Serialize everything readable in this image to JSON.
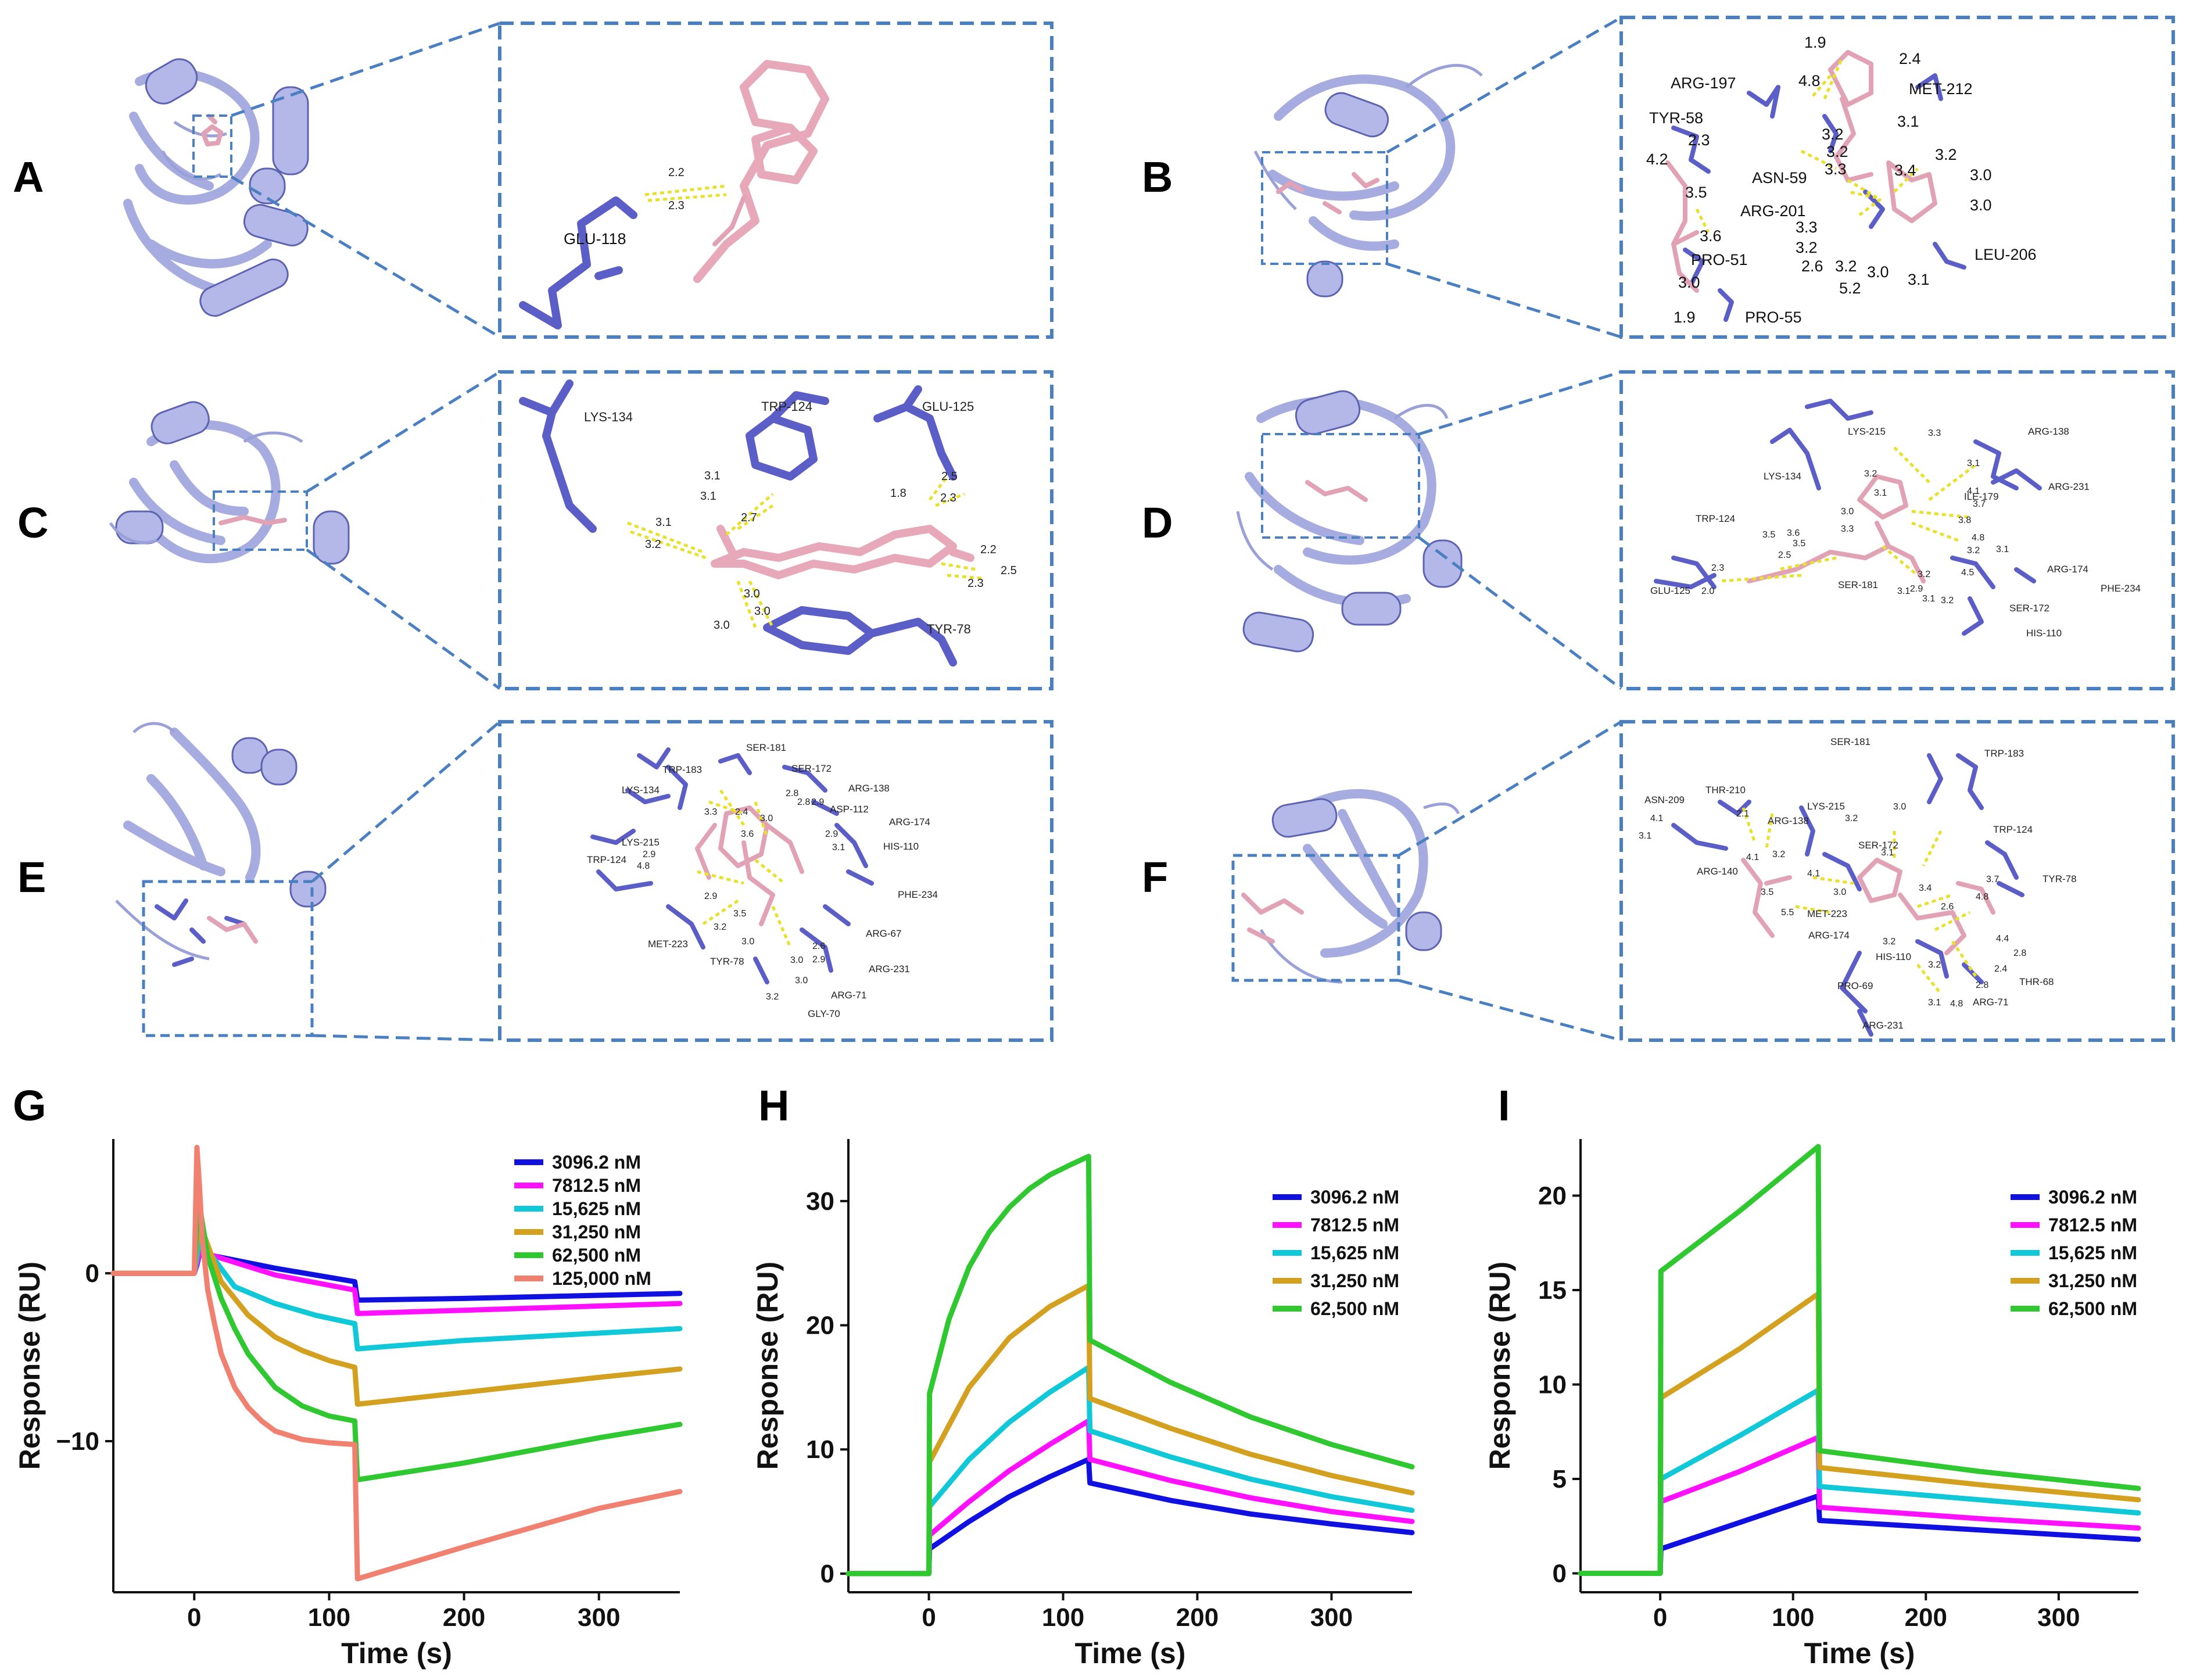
{
  "panels": [
    {
      "letter": "A",
      "residues": [
        "GLU-118"
      ],
      "distances": [
        "2.2",
        "2.3"
      ]
    },
    {
      "letter": "B",
      "residues": [
        "ARG-197",
        "MET-212",
        "TYR-58",
        "ASN-59",
        "ARG-201",
        "LEU-206",
        "PRO-51",
        "PRO-55"
      ],
      "distances": [
        "1.9",
        "2.4",
        "4.8",
        "3.2",
        "3.1",
        "4.2",
        "2.3",
        "3.2",
        "3.3",
        "3.4",
        "3.2",
        "3.0",
        "3.5",
        "3.0",
        "3.3",
        "3.6",
        "3.2",
        "2.6",
        "3.2",
        "3.0",
        "3.1",
        "5.2",
        "3.0",
        "1.9"
      ]
    },
    {
      "letter": "C",
      "residues": [
        "LYS-134",
        "TRP-124",
        "GLU-125",
        "TYR-78"
      ],
      "distances": [
        "3.1",
        "3.1",
        "2.7",
        "1.8",
        "2.5",
        "2.3",
        "3.1",
        "3.2",
        "2.2",
        "2.5",
        "2.3",
        "3.0",
        "3.0",
        "3.0"
      ]
    },
    {
      "letter": "D",
      "residues": [
        "LYS-215",
        "ARG-138",
        "LYS-134",
        "ILE-179",
        "ARG-231",
        "TRP-124",
        "GLU-125",
        "SER-181",
        "ARG-174",
        "PHE-234",
        "SER-172",
        "HIS-110"
      ],
      "distances": [
        "3.3",
        "3.1",
        "3.2",
        "3.1",
        "4.1",
        "3.7",
        "3.0",
        "3.3",
        "3.5",
        "3.6",
        "3.8",
        "2.5",
        "4.8",
        "2.3",
        "3.5",
        "3.1",
        "2.0",
        "3.2",
        "3.2",
        "4.5",
        "3.1",
        "2.9",
        "3.1",
        "3.2"
      ]
    },
    {
      "letter": "E",
      "residues": [
        "SER-181",
        "TRP-183",
        "SER-172",
        "ARG-138",
        "LYS-134",
        "ASP-112",
        "ARG-174",
        "LYS-215",
        "HIS-110",
        "TRP-124",
        "PHE-234",
        "ARG-67",
        "MET-223",
        "TYR-78",
        "ARG-231",
        "ARG-71",
        "GLY-70"
      ],
      "distances": [
        "2.8",
        "2.8",
        "2.9",
        "3.3",
        "2.4",
        "3.0",
        "3.6",
        "2.9",
        "3.1",
        "2.9",
        "4.8",
        "2.9",
        "3.2",
        "3.5",
        "3.0",
        "2.6",
        "3.0",
        "2.9",
        "3.0",
        "3.2"
      ]
    },
    {
      "letter": "F",
      "residues": [
        "SER-181",
        "TRP-183",
        "ASN-209",
        "THR-210",
        "LYS-215",
        "ARG-138",
        "SER-172",
        "TRP-124",
        "ARG-140",
        "MET-223",
        "TYR-78",
        "ARG-174",
        "HIS-110",
        "PRO-69",
        "THR-68",
        "ARG-71",
        "ARG-231"
      ],
      "distances": [
        "3.2",
        "3.0",
        "4.1",
        "2.1",
        "3.1",
        "4.1",
        "3.2",
        "3.1",
        "4.1",
        "3.0",
        "3.4",
        "3.7",
        "3.5",
        "5.5",
        "2.6",
        "4.8",
        "3.2",
        "4.4",
        "2.8",
        "3.2",
        "2.4",
        "2.8",
        "3.1",
        "4.8"
      ]
    }
  ],
  "chart_data": [
    {
      "panel": "G",
      "type": "line",
      "xlabel": "Time (s)",
      "ylabel": "Response (RU)",
      "xlim": [
        -60,
        360
      ],
      "ylim": [
        -19,
        8
      ],
      "xticks": [
        0,
        100,
        200,
        300
      ],
      "yticks": [
        -10,
        0
      ],
      "legend_position": "top-right",
      "series": [
        {
          "name": "3096.2 nM",
          "color": "#1010e0",
          "x": [
            -60,
            0,
            2,
            4,
            60,
            119,
            121,
            200,
            360
          ],
          "y": [
            0,
            0,
            0.5,
            1.2,
            0.3,
            -0.5,
            -1.6,
            -1.5,
            -1.2
          ]
        },
        {
          "name": "7812.5 nM",
          "color": "#ff10ff",
          "x": [
            -60,
            0,
            2,
            4,
            60,
            119,
            121,
            200,
            360
          ],
          "y": [
            0,
            0,
            0.6,
            1.3,
            -0.1,
            -1.0,
            -2.4,
            -2.2,
            -1.8
          ]
        },
        {
          "name": "15,625 nM",
          "color": "#10c8d8",
          "x": [
            -60,
            0,
            2,
            4,
            30,
            60,
            90,
            119,
            121,
            200,
            360
          ],
          "y": [
            0,
            0,
            1.0,
            2.0,
            -0.8,
            -1.8,
            -2.5,
            -3.0,
            -4.5,
            -4.0,
            -3.3
          ]
        },
        {
          "name": "31,250 nM",
          "color": "#d4a020",
          "x": [
            -60,
            0,
            2,
            4,
            20,
            40,
            60,
            80,
            100,
            119,
            121,
            200,
            300,
            360
          ],
          "y": [
            0,
            0,
            2.0,
            3.0,
            -0.5,
            -2.5,
            -3.8,
            -4.6,
            -5.2,
            -5.6,
            -7.8,
            -7.1,
            -6.2,
            -5.7
          ]
        },
        {
          "name": "62,500 nM",
          "color": "#30c830",
          "x": [
            -60,
            0,
            2,
            4,
            10,
            20,
            30,
            40,
            60,
            80,
            100,
            119,
            121,
            200,
            300,
            360
          ],
          "y": [
            0,
            0,
            3.0,
            4.0,
            1.0,
            -1.5,
            -3.3,
            -4.8,
            -6.8,
            -7.9,
            -8.5,
            -8.8,
            -12.3,
            -11.3,
            -9.8,
            -9.0
          ]
        },
        {
          "name": "125,000 nM",
          "color": "#f08070",
          "x": [
            -60,
            0,
            2,
            4,
            6,
            10,
            15,
            20,
            30,
            40,
            50,
            60,
            80,
            100,
            119,
            121,
            200,
            300,
            360
          ],
          "y": [
            0,
            0,
            7.5,
            5.0,
            2.0,
            -1.0,
            -3.0,
            -4.8,
            -6.8,
            -8.0,
            -8.8,
            -9.4,
            -9.9,
            -10.1,
            -10.2,
            -18.2,
            -16.3,
            -14.0,
            -13.0
          ]
        }
      ]
    },
    {
      "panel": "H",
      "type": "line",
      "xlabel": "Time (s)",
      "ylabel": "Response (RU)",
      "xlim": [
        -60,
        360
      ],
      "ylim": [
        -1.5,
        35
      ],
      "xticks": [
        0,
        100,
        200,
        300
      ],
      "yticks": [
        0,
        10,
        20,
        30
      ],
      "legend_position": "right",
      "series": [
        {
          "name": "3096.2 nM",
          "color": "#1010e0",
          "x": [
            -60,
            0,
            0.5,
            30,
            60,
            90,
            119,
            120,
            180,
            240,
            300,
            360
          ],
          "y": [
            0,
            0,
            2.0,
            4.2,
            6.2,
            7.8,
            9.2,
            7.3,
            5.9,
            4.8,
            4.0,
            3.3
          ]
        },
        {
          "name": "7812.5 nM",
          "color": "#ff10ff",
          "x": [
            -60,
            0,
            0.5,
            30,
            60,
            90,
            119,
            120,
            180,
            240,
            300,
            360
          ],
          "y": [
            0,
            0,
            3.1,
            5.8,
            8.3,
            10.4,
            12.3,
            9.2,
            7.5,
            6.1,
            5.0,
            4.2
          ]
        },
        {
          "name": "15,625 nM",
          "color": "#10c8d8",
          "x": [
            -60,
            0,
            0.5,
            30,
            60,
            90,
            119,
            120,
            180,
            240,
            300,
            360
          ],
          "y": [
            0,
            0,
            5.4,
            9.2,
            12.2,
            14.6,
            16.6,
            11.5,
            9.4,
            7.6,
            6.2,
            5.1
          ]
        },
        {
          "name": "31,250 nM",
          "color": "#d4a020",
          "x": [
            -60,
            0,
            0.5,
            30,
            60,
            90,
            119,
            120,
            180,
            240,
            300,
            360
          ],
          "y": [
            0,
            0,
            9.0,
            15.0,
            19.0,
            21.5,
            23.2,
            14.1,
            11.7,
            9.6,
            7.9,
            6.5
          ]
        },
        {
          "name": "62,500 nM",
          "color": "#30c830",
          "x": [
            -60,
            0,
            0.5,
            15,
            30,
            45,
            60,
            75,
            90,
            105,
            119,
            120,
            180,
            240,
            300,
            360
          ],
          "y": [
            0,
            0,
            14.5,
            20.5,
            24.7,
            27.5,
            29.5,
            31.0,
            32.1,
            32.9,
            33.6,
            18.8,
            15.4,
            12.6,
            10.4,
            8.6
          ]
        }
      ]
    },
    {
      "panel": "I",
      "type": "line",
      "xlabel": "Time (s)",
      "ylabel": "Response (RU)",
      "xlim": [
        -60,
        360
      ],
      "ylim": [
        -1,
        23
      ],
      "xticks": [
        0,
        100,
        200,
        300
      ],
      "yticks": [
        0,
        5,
        10,
        15,
        20
      ],
      "legend_position": "right",
      "series": [
        {
          "name": "3096.2 nM",
          "color": "#1010e0",
          "x": [
            -60,
            0,
            0.5,
            60,
            119,
            120,
            240,
            360
          ],
          "y": [
            0,
            0,
            1.3,
            2.7,
            4.1,
            2.8,
            2.3,
            1.8
          ]
        },
        {
          "name": "7812.5 nM",
          "color": "#ff10ff",
          "x": [
            -60,
            0,
            0.5,
            60,
            119,
            120,
            240,
            360
          ],
          "y": [
            0,
            0,
            3.8,
            5.4,
            7.2,
            3.5,
            2.9,
            2.4
          ]
        },
        {
          "name": "15,625 nM",
          "color": "#10c8d8",
          "x": [
            -60,
            0,
            0.5,
            60,
            119,
            120,
            240,
            360
          ],
          "y": [
            0,
            0,
            5.0,
            7.3,
            9.7,
            4.6,
            3.9,
            3.2
          ]
        },
        {
          "name": "31,250 nM",
          "color": "#d4a020",
          "x": [
            -60,
            0,
            0.5,
            60,
            119,
            120,
            240,
            360
          ],
          "y": [
            0,
            0,
            9.3,
            11.9,
            14.8,
            5.6,
            4.7,
            3.9
          ]
        },
        {
          "name": "62,500 nM",
          "color": "#30c830",
          "x": [
            -60,
            0,
            0.5,
            60,
            119,
            120,
            240,
            360
          ],
          "y": [
            0,
            0,
            16.0,
            19.2,
            22.6,
            6.5,
            5.4,
            4.5
          ]
        }
      ]
    }
  ]
}
